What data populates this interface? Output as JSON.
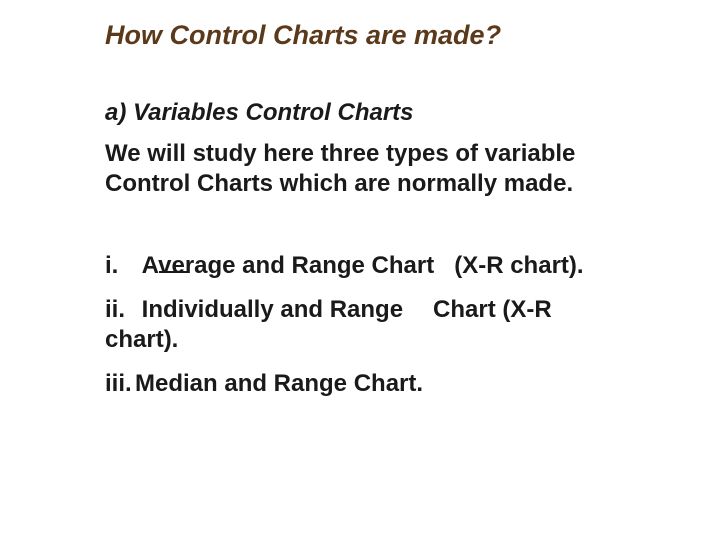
{
  "title": "How Control Charts are made?",
  "subtitle": "a) Variables Control Charts",
  "intro": "We will study here three types of variable Control Charts which are normally made.",
  "items": {
    "i": {
      "label": "i.",
      "pre": "Av",
      "post": "erage and Range Chart",
      "tail": "(X-R chart)."
    },
    "ii": {
      "label": "ii.",
      "text": "Individually and Range",
      "tail": "Chart (X-R chart)."
    },
    "iii": {
      "label": "iii.",
      "text": "Median and Range Chart."
    }
  },
  "colors": {
    "title": "#5a3a1a",
    "body": "#1a1a1a",
    "background": "#ffffff"
  },
  "fonts": {
    "title_size": 27,
    "body_size": 24,
    "family": "Arial"
  }
}
